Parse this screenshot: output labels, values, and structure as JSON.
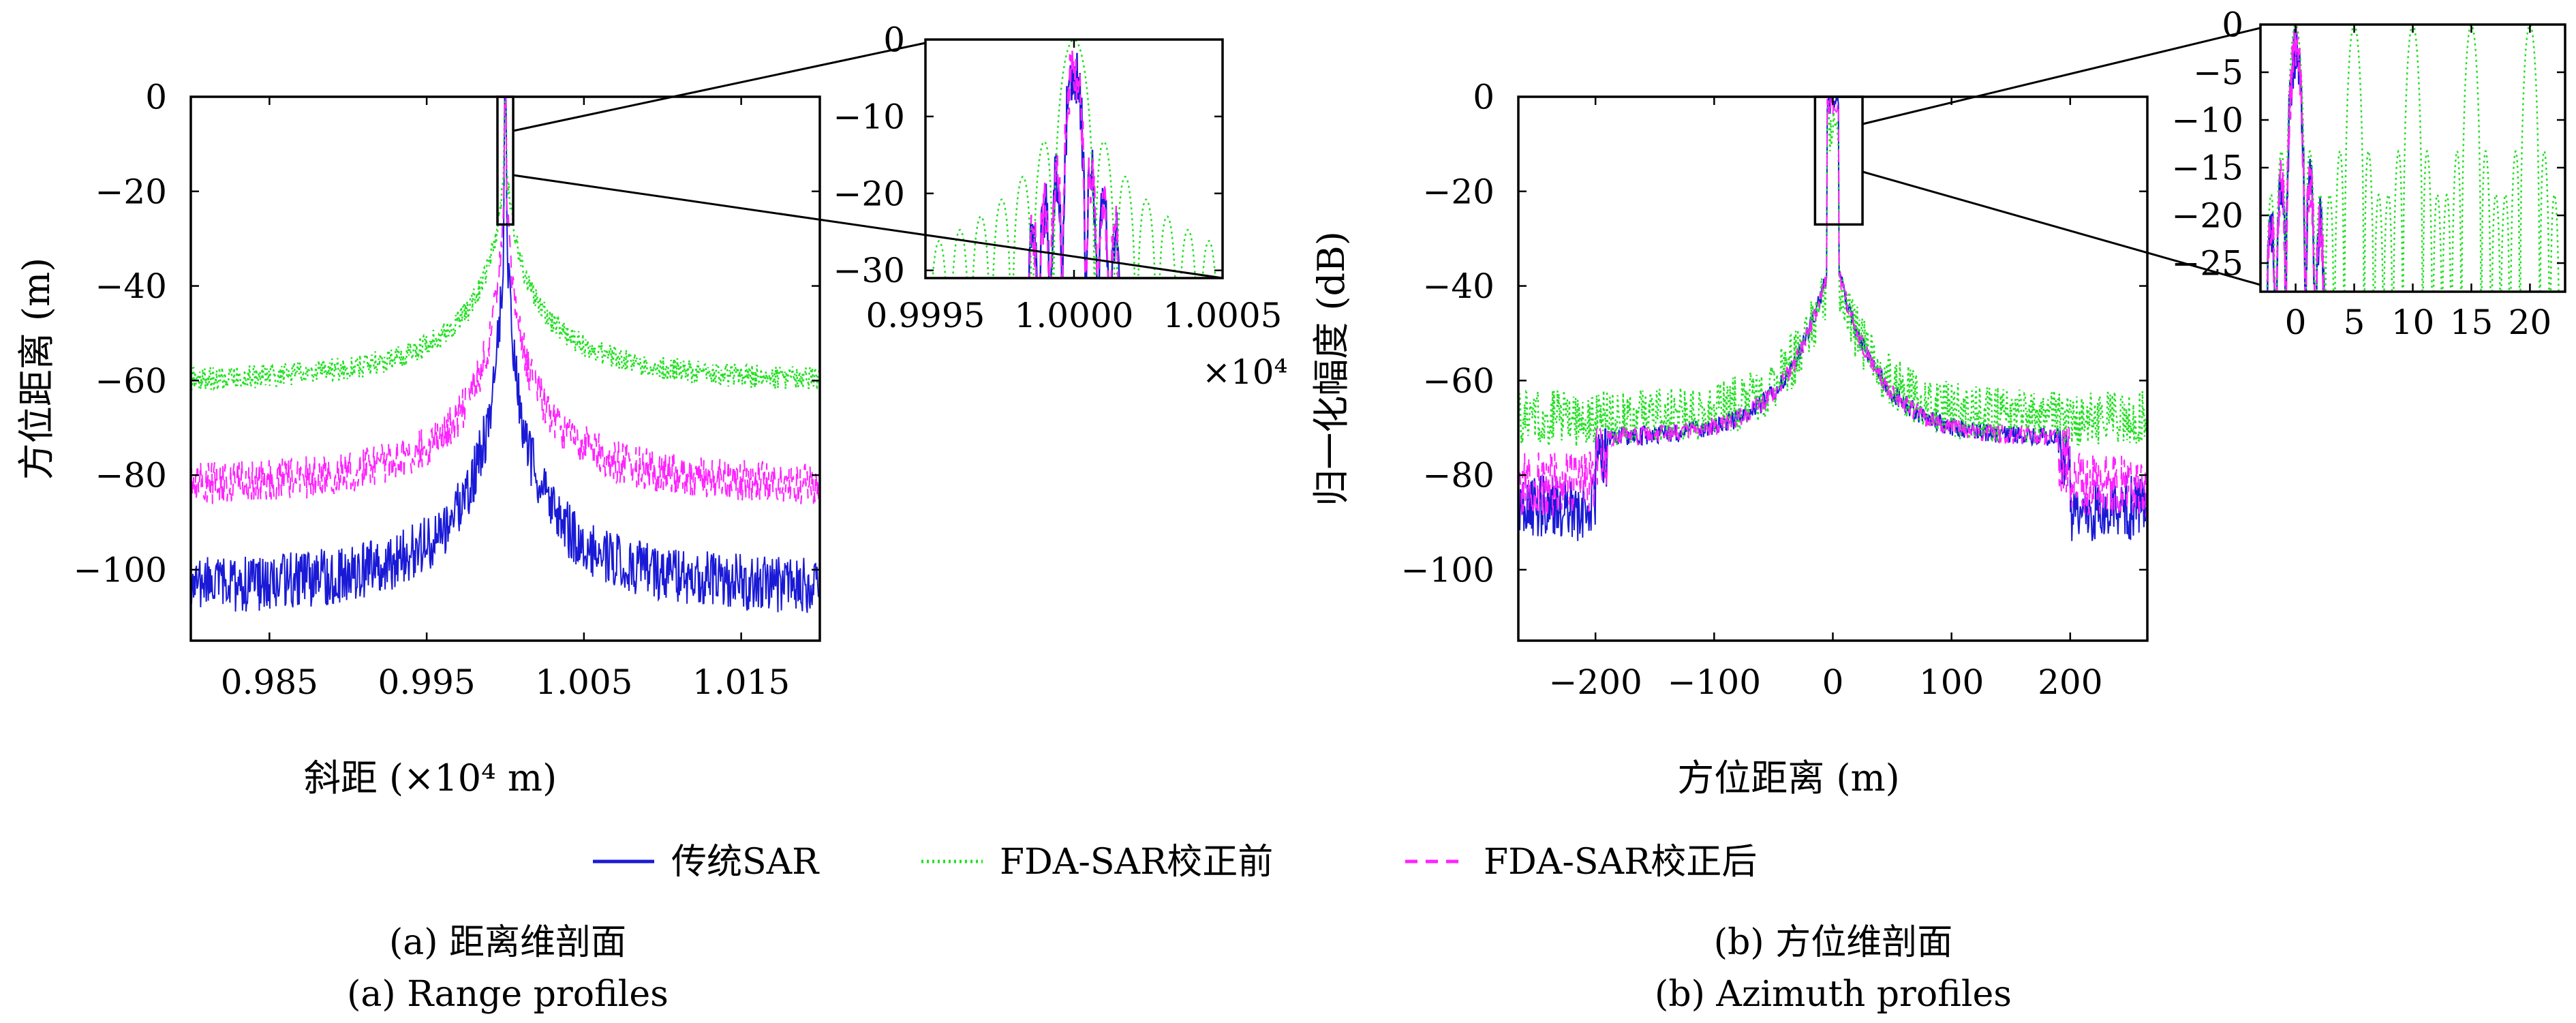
{
  "colors": {
    "traditional": "#1a1ad6",
    "before": "#22e022",
    "after": "#ff22ff",
    "axis": "#000000"
  },
  "legend": [
    {
      "label": "传统SAR",
      "color": "#1a1ad6",
      "style": "solid"
    },
    {
      "label": "FDA-SAR校正前",
      "color": "#22e022",
      "style": "dotted"
    },
    {
      "label": "FDA-SAR校正后",
      "color": "#ff22ff",
      "style": "dashed"
    }
  ],
  "captions": {
    "a_cn": "(a) 距离维剖面",
    "a_en": "(a) Range profiles",
    "b_cn": "(b) 方位维剖面",
    "b_en": "(b) Azimuth profiles"
  },
  "chart_data": [
    {
      "id": "range_main",
      "type": "line",
      "xlabel": "斜距 (×10⁴ m)",
      "ylabel": "方位距离 (m)",
      "xlim": [
        0.98,
        1.02
      ],
      "ylim": [
        -115,
        0
      ],
      "xticks": [
        0.985,
        0.995,
        1.005,
        1.015
      ],
      "xtick_labels": [
        "0.985",
        "0.995",
        "1.005",
        "1.015"
      ],
      "yticks": [
        0,
        -20,
        -40,
        -60,
        -80,
        -100
      ],
      "ytick_labels": [
        "0",
        "−20",
        "−40",
        "−60",
        "−80",
        "−100"
      ],
      "peak_x": 1.0,
      "series": [
        {
          "name": "传统SAR",
          "peak": 0,
          "edge_level": -98,
          "spread": 0.0045,
          "noise": 12
        },
        {
          "name": "FDA-SAR校正前",
          "peak": 0,
          "edge_level": -58,
          "spread": 0.006,
          "noise": 5
        },
        {
          "name": "FDA-SAR校正后",
          "peak": 0,
          "edge_level": -78,
          "spread": 0.005,
          "noise": 9
        }
      ],
      "zoom_window": {
        "x": [
          0.9995,
          1.0005
        ],
        "y": [
          -27,
          0
        ]
      }
    },
    {
      "id": "range_inset",
      "type": "line",
      "xlim": [
        0.9995,
        1.0005
      ],
      "ylim": [
        -31,
        0
      ],
      "xticks": [
        0.9995,
        1.0,
        1.0005
      ],
      "xtick_labels": [
        "0.9995",
        "1.0000",
        "1.0005"
      ],
      "yticks": [
        0,
        -10,
        -20,
        -30
      ],
      "ytick_labels": [
        "0",
        "−10",
        "−20",
        "−30"
      ],
      "x_multiplier": "×10⁴",
      "series": [
        {
          "name": "传统SAR",
          "mainlobe_width": 4e-05,
          "sidelobe": -22
        },
        {
          "name": "FDA-SAR校正前",
          "mainlobe_width": 7e-05,
          "sidelobe": -13
        },
        {
          "name": "FDA-SAR校正后",
          "mainlobe_width": 4e-05,
          "sidelobe": -22
        }
      ]
    },
    {
      "id": "azimuth_main",
      "type": "line",
      "xlabel": "方位距离 (m)",
      "ylabel": "归一化幅度 (dB)",
      "xlim": [
        -265,
        265
      ],
      "ylim": [
        -115,
        0
      ],
      "xticks": [
        -200,
        -100,
        0,
        100,
        200
      ],
      "xtick_labels": [
        "−200",
        "−100",
        "0",
        "100",
        "200"
      ],
      "yticks": [
        0,
        -20,
        -40,
        -60,
        -80,
        -100
      ],
      "ytick_labels": [
        "0",
        "−20",
        "−40",
        "−60",
        "−80",
        "−100"
      ],
      "series": [
        {
          "name": "传统SAR",
          "peak": 0,
          "plateau": -70,
          "edge_level": -80
        },
        {
          "name": "FDA-SAR校正前",
          "peak": 0,
          "plateau": -62,
          "edge_level": -62
        },
        {
          "name": "FDA-SAR校正后",
          "peak": 0,
          "plateau": -70,
          "edge_level": -75
        }
      ],
      "zoom_window": {
        "x": [
          -15,
          25
        ],
        "y": [
          -27,
          0
        ]
      }
    },
    {
      "id": "azimuth_inset",
      "type": "line",
      "xlim": [
        -3,
        23
      ],
      "ylim": [
        -28,
        0
      ],
      "xticks": [
        0,
        5,
        10,
        15,
        20
      ],
      "xtick_labels": [
        "0",
        "5",
        "10",
        "15",
        "20"
      ],
      "yticks": [
        0,
        -5,
        -10,
        -15,
        -20,
        -25
      ],
      "ytick_labels": [
        "0",
        "−5",
        "−10",
        "−15",
        "−20",
        "−25"
      ],
      "series": [
        {
          "name": "传统SAR",
          "peaks": [
            0
          ]
        },
        {
          "name": "FDA-SAR校正前",
          "peaks": [
            0,
            5,
            10,
            15,
            20
          ]
        },
        {
          "name": "FDA-SAR校正后",
          "peaks": [
            0
          ]
        }
      ]
    }
  ]
}
